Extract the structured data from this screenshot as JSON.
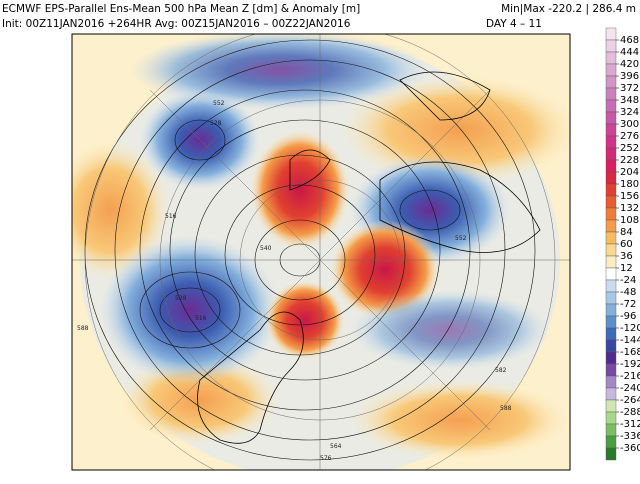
{
  "header": {
    "line1": "ECMWF EPS-Parallel Ens-Mean 500 hPa Mean Z [dm] & Anomaly [m]",
    "minmax": "Min|Max -220.2 | 286.4 m",
    "line2": "Init: 00Z11JAN2016 +264HR  Avg: 00Z15JAN2016 – 00Z22JAN2016",
    "days": "DAY 4 – 11"
  },
  "map": {
    "contour_labels": [
      "516",
      "528",
      "540",
      "552",
      "564",
      "576",
      "588",
      "516",
      "528",
      "582",
      "588",
      "552"
    ]
  },
  "colorbar": {
    "labels": [
      468,
      444,
      420,
      396,
      372,
      348,
      324,
      300,
      276,
      252,
      228,
      204,
      180,
      156,
      132,
      108,
      84,
      60,
      36,
      12,
      -24,
      -48,
      -72,
      -96,
      -120,
      -144,
      -168,
      -192,
      -216,
      -240,
      -264,
      -288,
      -312,
      -336,
      -360
    ],
    "colors": [
      "#f4e4f0",
      "#ecd0e6",
      "#e4bcdc",
      "#dca8d2",
      "#d494c8",
      "#cc80be",
      "#c86cb4",
      "#c858a8",
      "#cc4498",
      "#d03488",
      "#d42878",
      "#d82060",
      "#d82840",
      "#e04030",
      "#e85c30",
      "#f07c38",
      "#f49c48",
      "#f8bc60",
      "#fad890",
      "#fcecc0",
      "#ffffff",
      "#c8dcf0",
      "#a8c8e8",
      "#84b0dc",
      "#5c90cc",
      "#3c6cb8",
      "#3848a0",
      "#502c90",
      "#7848a8",
      "#a488c8",
      "#c8b8e0",
      "#d0e8b0",
      "#a8d888",
      "#78c060",
      "#48a040",
      "#287c28"
    ]
  }
}
